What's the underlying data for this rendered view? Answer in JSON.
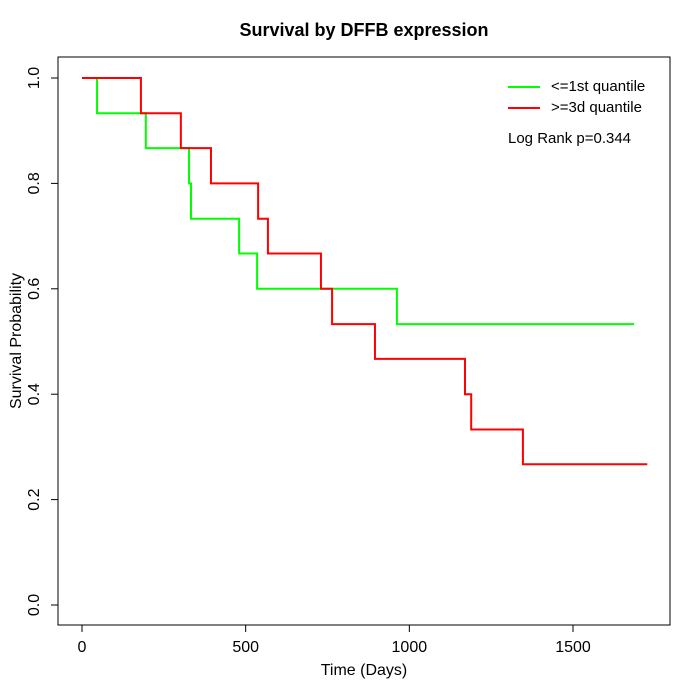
{
  "chart_data": {
    "type": "line",
    "subtype": "kaplan-meier-step",
    "title": "Survival by DFFB expression",
    "xlabel": "Time (Days)",
    "ylabel": "Survival Probability",
    "xlim": [
      0,
      1700
    ],
    "ylim": [
      0,
      1
    ],
    "grid": false,
    "legend_position": "top-right",
    "annotation": "Log Rank p=0.344",
    "x_ticks": [
      0,
      500,
      1000,
      1500
    ],
    "x_tick_labels": [
      "0",
      "500",
      "1000",
      "1500"
    ],
    "y_ticks": [
      0,
      0.2,
      0.4,
      0.6,
      0.8,
      1.0
    ],
    "y_tick_labels": [
      "0.0",
      "0.2",
      "0.4",
      "0.6",
      "0.8",
      "1.0"
    ],
    "series": [
      {
        "name": "<=1st quantile",
        "color": "#00FF00",
        "start": [
          0,
          1.0
        ],
        "drops": [
          [
            46,
            0.933
          ],
          [
            195,
            0.867
          ],
          [
            327,
            0.8
          ],
          [
            333,
            0.733
          ],
          [
            480,
            0.667
          ],
          [
            535,
            0.6
          ],
          [
            962,
            0.533
          ]
        ],
        "end_time": 1687
      },
      {
        "name": ">=3d quantile",
        "color": "#FF0000",
        "start": [
          0,
          1.0
        ],
        "drops": [
          [
            180,
            0.933
          ],
          [
            302,
            0.867
          ],
          [
            394,
            0.8
          ],
          [
            538,
            0.733
          ],
          [
            568,
            0.667
          ],
          [
            730,
            0.6
          ],
          [
            764,
            0.533
          ],
          [
            895,
            0.467
          ],
          [
            1170,
            0.4
          ],
          [
            1189,
            0.333
          ],
          [
            1347,
            0.267
          ]
        ],
        "end_time": 1727
      }
    ]
  }
}
